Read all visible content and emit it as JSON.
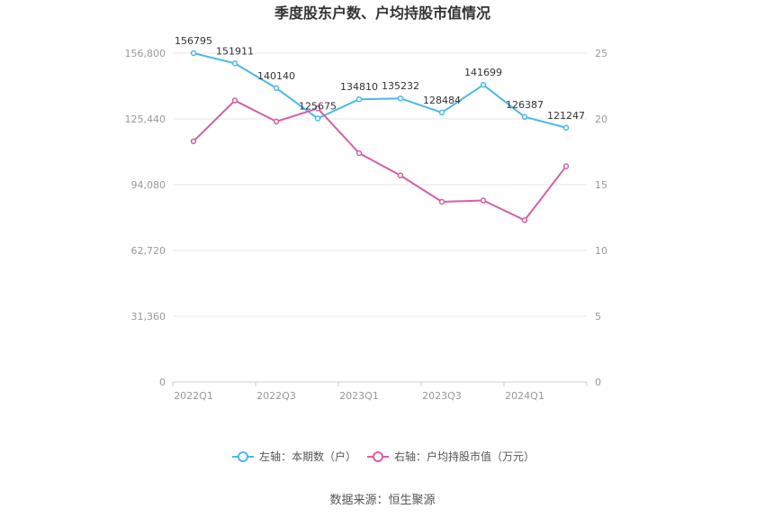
{
  "chart_data": {
    "type": "line",
    "title": "季度股东户数、户均持股市值情况",
    "source": "数据来源：恒生聚源",
    "x_labels": [
      "2022Q1",
      "2022Q3",
      "2023Q1",
      "2023Q3",
      "2024Q1"
    ],
    "categories": [
      "2022Q1",
      "2022Q2",
      "2022Q3",
      "2022Q4",
      "2023Q1",
      "2023Q2",
      "2023Q3",
      "2023Q4",
      "2024Q1",
      "2024Q2"
    ],
    "left_axis": {
      "min": 0,
      "max": 156800,
      "ticks": [
        "0",
        "31,360",
        "62,720",
        "94,080",
        "125,440",
        "156,800"
      ]
    },
    "right_axis": {
      "min": 0,
      "max": 25,
      "ticks": [
        "0",
        "5",
        "10",
        "15",
        "20",
        "25"
      ]
    },
    "grid": true,
    "legend_position": "bottom",
    "series": [
      {
        "name": "左轴：本期数（户）",
        "axis": "left",
        "color": "#4db8e8",
        "values": [
          156795,
          151911,
          140140,
          125675,
          134810,
          135232,
          128484,
          141699,
          126387,
          121247
        ],
        "labels": [
          "156795",
          "151911",
          "140140",
          "125675",
          "134810",
          "135232",
          "128484",
          "141699",
          "126387",
          "121247"
        ]
      },
      {
        "name": "右轴：户均持股市值（万元）",
        "axis": "right",
        "color": "#d45fa8",
        "values": [
          18.3,
          21.4,
          19.8,
          20.8,
          17.4,
          15.7,
          13.7,
          13.8,
          12.3,
          16.4
        ]
      }
    ]
  }
}
